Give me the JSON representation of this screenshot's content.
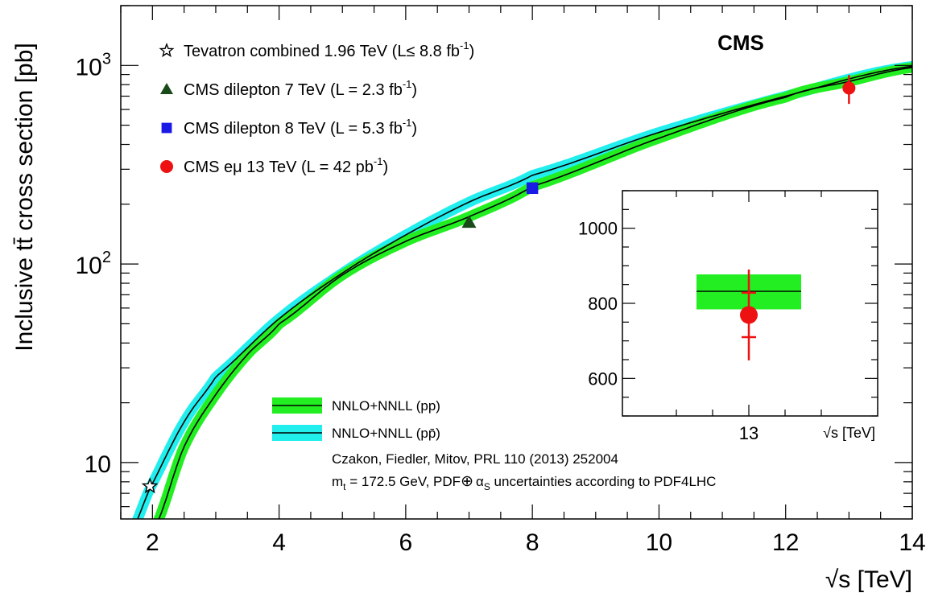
{
  "chart_data": {
    "type": "line",
    "title": "CMS",
    "xlabel": "√s [TeV]",
    "ylabel": "Inclusive tt̄ cross section [pb]",
    "xlim": [
      1.5,
      14
    ],
    "ylim": [
      5.2,
      2000
    ],
    "yscale": "log",
    "x_ticks": [
      "2",
      "4",
      "6",
      "8",
      "10",
      "12",
      "14"
    ],
    "y_ticks": [
      {
        "base": "10",
        "exp": "3"
      },
      {
        "base": "10",
        "exp": "2"
      },
      {
        "base": "10",
        "exp": ""
      }
    ],
    "series": [
      {
        "name": "NNLO+NNLL (pp)",
        "color": "#000000",
        "band_color": "#22ee22",
        "x": [
          2.0,
          2.5,
          3.0,
          3.5,
          4.0,
          5.0,
          6.0,
          7.0,
          8.0,
          10.0,
          12.0,
          13.0,
          14.0
        ],
        "values": [
          4.5,
          12,
          22,
          35,
          50,
          88,
          130,
          173,
          246,
          430,
          690,
          830,
          975
        ]
      },
      {
        "name": "NNLO+NNLL (pp̄)",
        "color": "#000000",
        "band_color": "#22eeee",
        "x": [
          1.5,
          1.96,
          2.5,
          3.0,
          4.0,
          5.0,
          6.0,
          7.0,
          8.0,
          10.0,
          12.0,
          14.0
        ],
        "values": [
          3.5,
          7.4,
          16,
          27,
          53,
          90,
          140,
          205,
          280,
          460,
          700,
          990
        ]
      }
    ],
    "points": [
      {
        "label": "Tevatron combined 1.96 TeV (L≤ 8.8 fb",
        "sup": "-1",
        "tail": ")",
        "x": 1.96,
        "y": 7.6,
        "marker": "star",
        "color": "#000000"
      },
      {
        "label": "CMS dilepton 7 TeV (L = 2.3 fb",
        "sup": "-1",
        "tail": ")",
        "x": 7.0,
        "y": 162,
        "marker": "triangle",
        "color": "#1a4a1a"
      },
      {
        "label": "CMS dilepton 8 TeV (L = 5.3 fb",
        "sup": "-1",
        "tail": ")",
        "x": 8.0,
        "y": 241,
        "marker": "square",
        "color": "#1a1ae6"
      },
      {
        "label": "CMS eμ 13 TeV (L = 42 pb",
        "sup": "-1",
        "tail": ")",
        "x": 13.0,
        "y": 769,
        "yerr": [
          640,
          895
        ],
        "marker": "circle",
        "color": "#ee1111"
      }
    ],
    "inset": {
      "xlabel_tick": "13",
      "xlabel": "√s [TeV]",
      "ylim": [
        500,
        1100
      ],
      "y_ticks": [
        "1000",
        "800",
        "600"
      ],
      "theory": {
        "value": 832,
        "band": [
          784,
          877
        ],
        "color": "#22ee22"
      },
      "measurement": {
        "value": 769,
        "stat_err": [
          710,
          828
        ],
        "tot_err": [
          648,
          890
        ],
        "color": "#ee1111"
      }
    },
    "legend_placement": "bottom-center",
    "annotations": [
      "Czakon, Fiedler, Mitov, PRL 110 (2013) 252004",
      "m_t = 172.5 GeV, PDF ⊕ α_S uncertainties according to PDF4LHC"
    ],
    "grid": false
  },
  "annot": {
    "citation": "Czakon, Fiedler, Mitov, PRL 110 (2013) 252004",
    "mt_m": "m",
    "mt_sub": "t",
    "mt_text": " = 172.5 GeV, PDF",
    "oplus": "⊕",
    "alpha": "α",
    "alpha_sub": "S",
    "mt_tail": " uncertainties according to PDF4LHC"
  },
  "colors": {
    "pp_band": "#22ee22",
    "ppbar_band": "#22eeee",
    "measurement": "#ee1111"
  }
}
